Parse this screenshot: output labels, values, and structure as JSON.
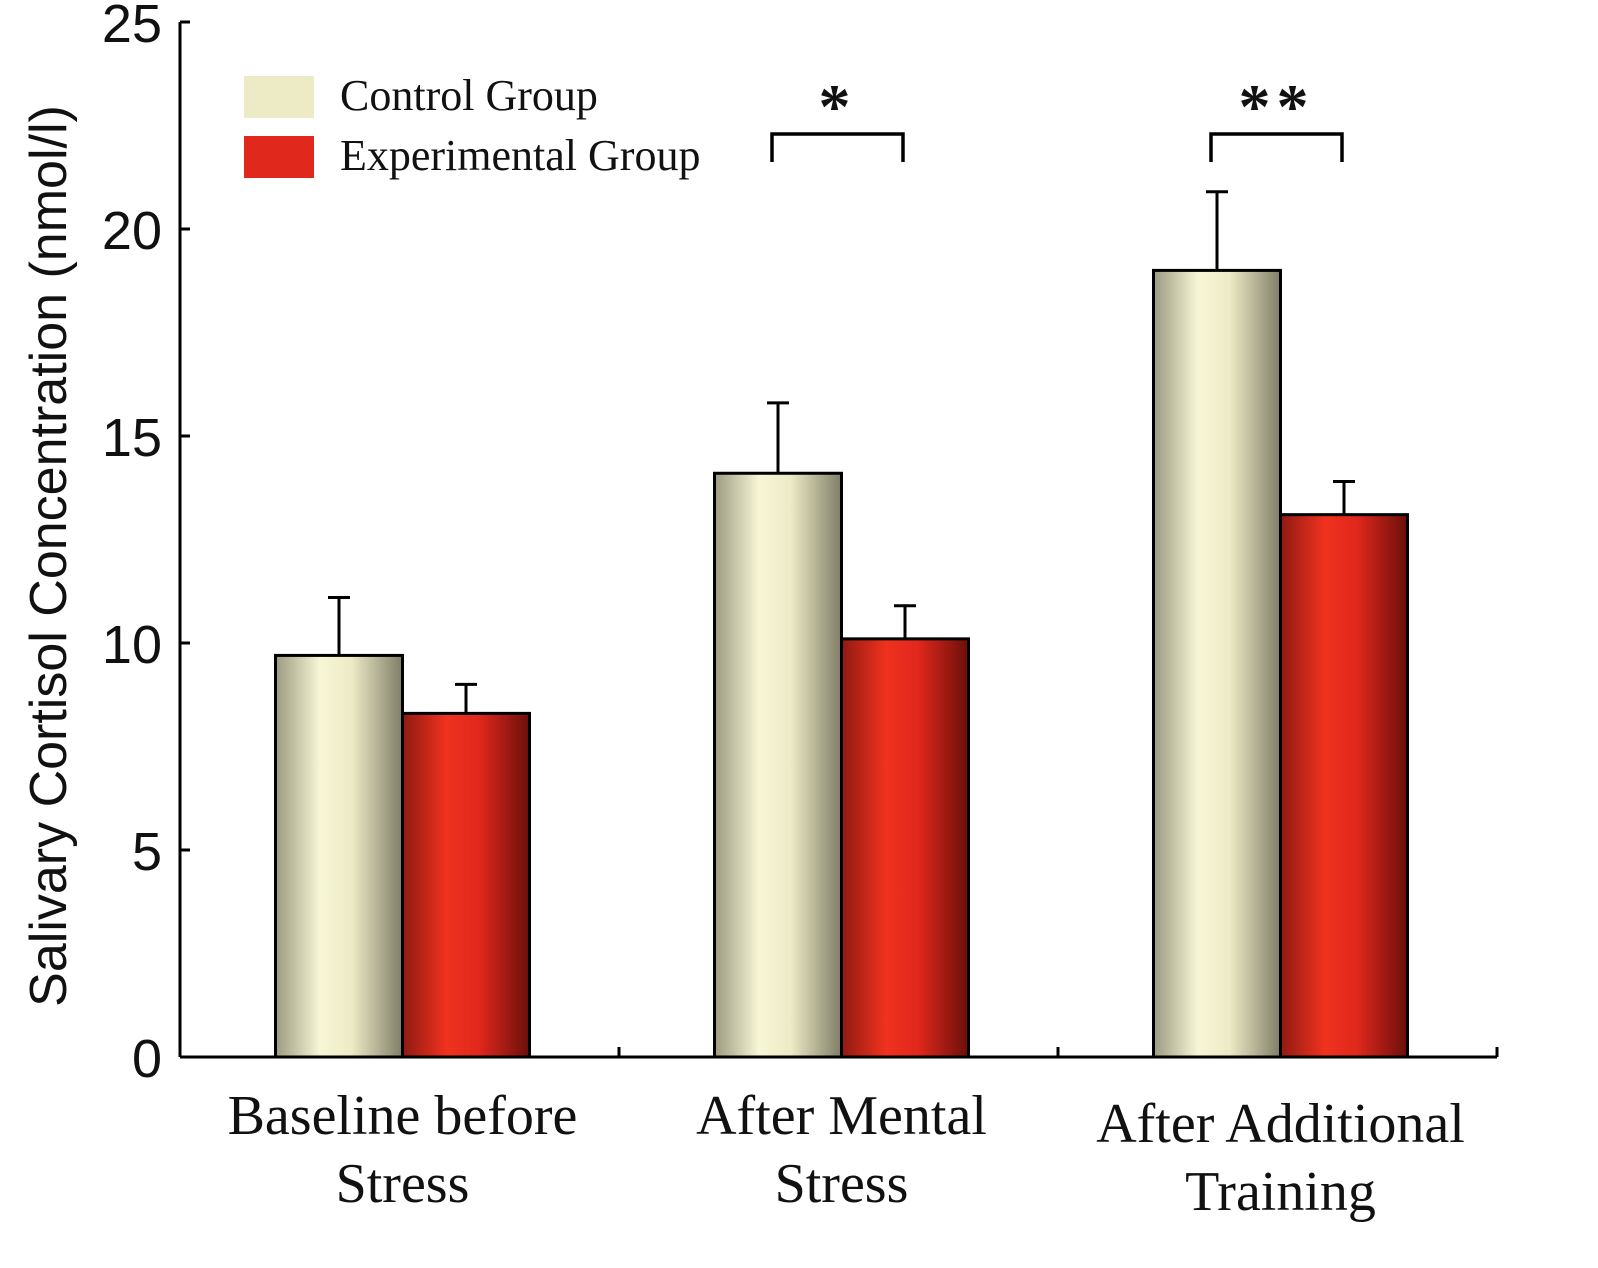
{
  "chart_data": {
    "type": "bar",
    "title": "",
    "xlabel": "",
    "ylabel": "Salivary Cortisol Concentration (nmol/l)",
    "ylim": [
      0,
      25
    ],
    "yticks": [
      "0",
      "5",
      "10",
      "15",
      "20",
      "25"
    ],
    "categories": [
      [
        "Baseline before",
        "Stress"
      ],
      [
        "After Mental",
        "Stress"
      ],
      [
        "After Additional",
        "Training"
      ]
    ],
    "series": [
      {
        "name": "Control Group",
        "values": [
          9.7,
          14.1,
          19.0
        ],
        "errors": [
          1.4,
          1.7,
          1.9
        ],
        "color": "#ecebc6",
        "edge": "#8c8a70"
      },
      {
        "name": "Experimental Group",
        "values": [
          8.3,
          10.1,
          13.1
        ],
        "errors": [
          0.7,
          0.8,
          0.8
        ],
        "color": "#e0281c",
        "edge": "#7d120c"
      }
    ],
    "significance": [
      {
        "category_index": 1,
        "label": "*"
      },
      {
        "category_index": 2,
        "label": "**"
      }
    ],
    "legend_position": "top-left",
    "grid": false
  }
}
